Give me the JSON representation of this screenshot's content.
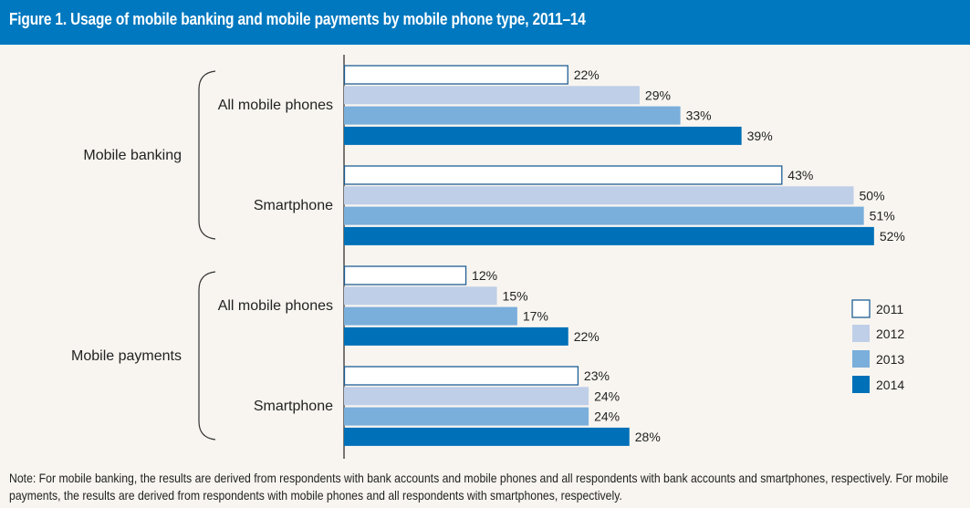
{
  "header": {
    "title": "Figure 1. Usage of mobile banking and mobile payments by mobile phone type, 2011–14"
  },
  "note": "Note: For mobile banking, the results are derived from respondents with bank accounts and mobile phones and all respondents with bank accounts and smartphones, respectively. For mobile payments, the results are derived from respondents with mobile phones and all respondents with smartphones, respectively.",
  "colors": {
    "2011": "#ffffff",
    "2012": "#bfcfe8",
    "2013": "#7aaedb",
    "2014": "#0070b8",
    "outline": "#1f5f94",
    "header": "#0078bf"
  },
  "chart_data": {
    "type": "bar",
    "orientation": "horizontal",
    "title": "Figure 1. Usage of mobile banking and mobile payments by mobile phone type, 2011–14",
    "xlabel": "",
    "ylabel": "",
    "unit": "%",
    "xlim": [
      0,
      60
    ],
    "grid": false,
    "legend_position": "right",
    "legend": [
      "2011",
      "2012",
      "2013",
      "2014"
    ],
    "groups": [
      {
        "name": "Mobile banking",
        "categories": [
          {
            "name": "All mobile phones",
            "values": [
              22,
              29,
              33,
              39
            ]
          },
          {
            "name": "Smartphone",
            "values": [
              43,
              50,
              51,
              52
            ]
          }
        ]
      },
      {
        "name": "Mobile payments",
        "categories": [
          {
            "name": "All mobile phones",
            "values": [
              12,
              15,
              17,
              22
            ]
          },
          {
            "name": "Smartphone",
            "values": [
              23,
              24,
              24,
              28
            ]
          }
        ]
      }
    ],
    "series": [
      {
        "name": "2011",
        "values": [
          22,
          43,
          12,
          23
        ]
      },
      {
        "name": "2012",
        "values": [
          29,
          50,
          15,
          24
        ]
      },
      {
        "name": "2013",
        "values": [
          33,
          51,
          17,
          24
        ]
      },
      {
        "name": "2014",
        "values": [
          39,
          52,
          22,
          28
        ]
      }
    ]
  }
}
